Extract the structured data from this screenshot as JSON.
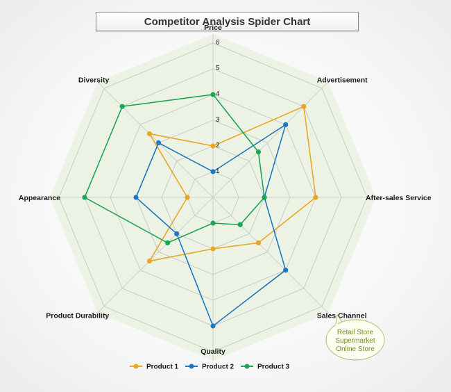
{
  "chart_data": {
    "type": "radar",
    "title": "Competitor Analysis Spider Chart",
    "axes": [
      "Price",
      "Advertisement",
      "After-sales Service",
      "Sales Channel",
      "Quality",
      "Product Durability",
      "Appearance",
      "Diversity"
    ],
    "rlim": [
      0,
      6
    ],
    "ticks": [
      1,
      2,
      3,
      4,
      5,
      6
    ],
    "series": [
      {
        "name": "Product 1",
        "color": "#e8a623",
        "values": [
          2,
          5,
          4,
          2.5,
          2,
          3.5,
          1,
          3.5
        ]
      },
      {
        "name": "Product 2",
        "color": "#1f77c0",
        "values": [
          1,
          4,
          2,
          4,
          5,
          2,
          3,
          3
        ]
      },
      {
        "name": "Product 3",
        "color": "#1aa655",
        "values": [
          4,
          2.5,
          2,
          1.5,
          1,
          2.5,
          5,
          5
        ]
      }
    ],
    "legend_position": "bottom",
    "annotation": {
      "anchor_axis": "Sales Channel",
      "lines": [
        "Retail Store",
        "Supermarket",
        "Online Store"
      ]
    }
  }
}
